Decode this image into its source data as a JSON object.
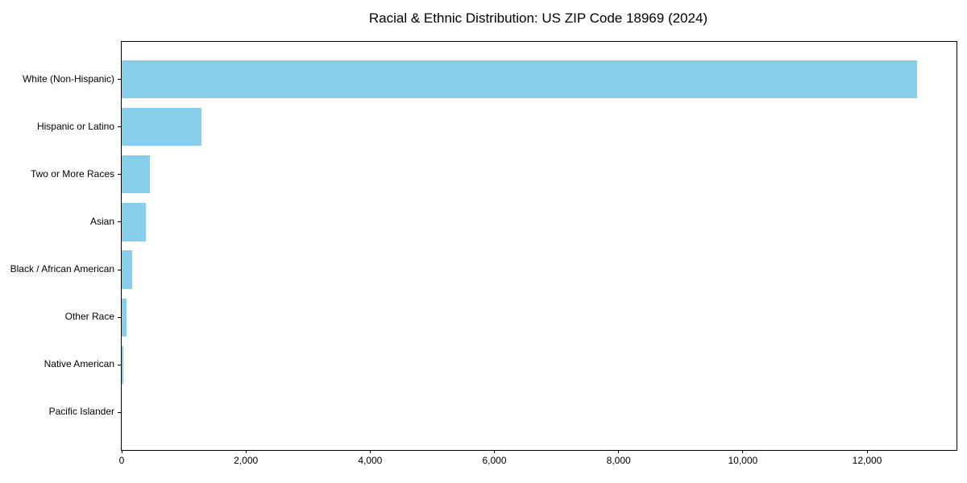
{
  "chart_data": {
    "type": "bar",
    "orientation": "horizontal",
    "title": "Racial & Ethnic Distribution: US ZIP Code 18969 (2024)",
    "categories": [
      "White (Non-Hispanic)",
      "Hispanic or Latino",
      "Two or More Races",
      "Asian",
      "Black / African American",
      "Other Race",
      "Native American",
      "Pacific Islander"
    ],
    "values": [
      12800,
      1290,
      450,
      390,
      170,
      75,
      30,
      0
    ],
    "xlabel": "",
    "ylabel": "",
    "xlim": [
      0,
      13440
    ],
    "xticks": [
      0,
      2000,
      4000,
      6000,
      8000,
      10000,
      12000
    ],
    "xticklabels": [
      "0",
      "2,000",
      "4,000",
      "6,000",
      "8,000",
      "10,000",
      "12,000"
    ],
    "bar_color": "#87CEEB",
    "spine_color": "#000000",
    "grid": false,
    "legend": null
  }
}
